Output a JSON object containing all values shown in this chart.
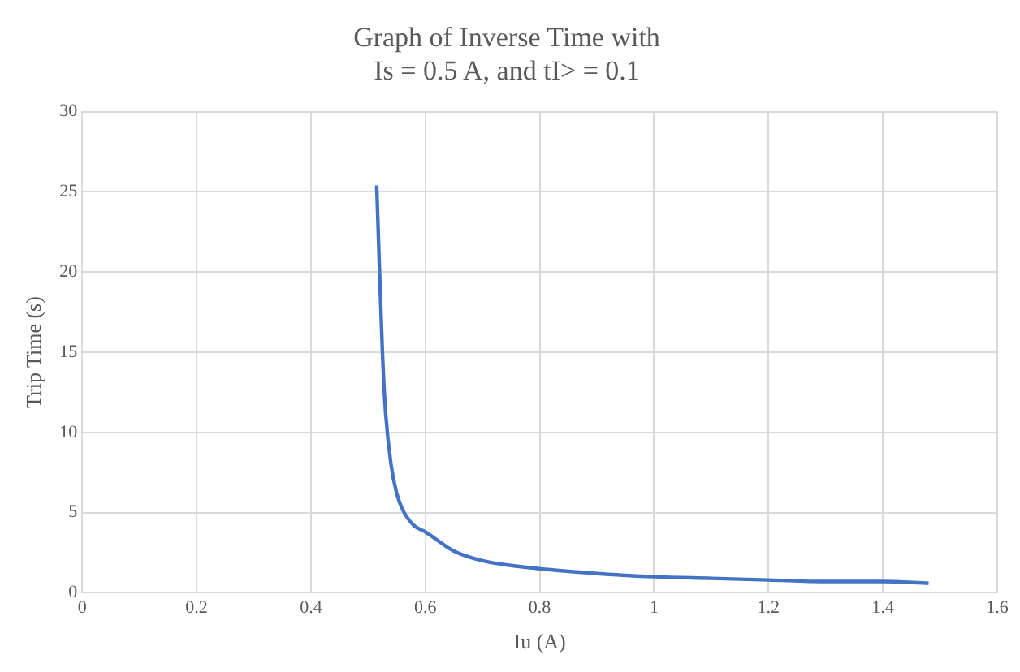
{
  "chart_data": {
    "type": "line",
    "title": [
      "Graph of Inverse Time with",
      "Is = 0.5 A, and tI> = 0.1"
    ],
    "xlabel": "Iu (A)",
    "ylabel": "Trip Time (s)",
    "x": [
      0.515,
      0.52,
      0.525,
      0.53,
      0.54,
      0.55,
      0.56,
      0.58,
      0.6,
      0.65,
      0.7,
      0.8,
      0.9,
      1.0,
      1.1,
      1.2,
      1.3,
      1.4,
      1.48
    ],
    "series": [
      {
        "color": "#4472c4",
        "values": [
          25.4,
          20,
          15,
          11.5,
          8,
          6.2,
          5.2,
          4.2,
          3.8,
          2.6,
          2.0,
          1.5,
          1.2,
          1.0,
          0.9,
          0.8,
          0.7,
          0.7,
          0.6
        ]
      }
    ],
    "xlim": [
      0,
      1.6
    ],
    "xticks": [
      0,
      0.2,
      0.4,
      0.6,
      0.8,
      1,
      1.2,
      1.4,
      1.6
    ],
    "ylim": [
      0,
      30
    ],
    "yticks": [
      0,
      5,
      10,
      15,
      20,
      25,
      30
    ],
    "grid": true,
    "legend": false,
    "marker": "none",
    "line_style": "solid"
  }
}
